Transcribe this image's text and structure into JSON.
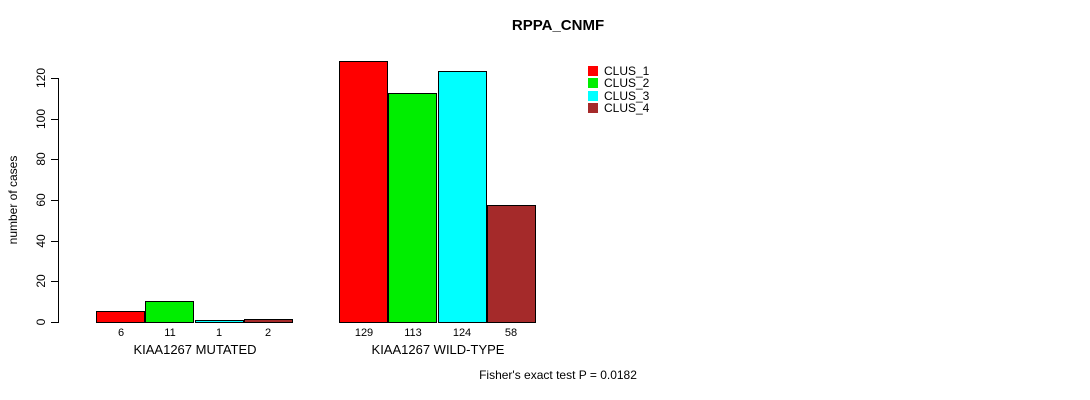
{
  "title": "RPPA_CNMF",
  "footer": "Fisher's exact test P = 0.0182",
  "chart_data": {
    "type": "bar",
    "title": "RPPA_CNMF",
    "xlabel": "",
    "ylabel": "number of cases",
    "ylim": [
      0,
      120
    ],
    "yticks": [
      0,
      20,
      40,
      60,
      80,
      100,
      120
    ],
    "grid": false,
    "legend_position": "top-right",
    "categories": [
      "KIAA1267 MUTATED",
      "KIAA1267 WILD-TYPE"
    ],
    "series": [
      {
        "name": "CLUS_1",
        "color": "#ff0000",
        "values": [
          6,
          129
        ]
      },
      {
        "name": "CLUS_2",
        "color": "#00ee00",
        "values": [
          11,
          113
        ]
      },
      {
        "name": "CLUS_3",
        "color": "#00ffff",
        "values": [
          1,
          124
        ]
      },
      {
        "name": "CLUS_4",
        "color": "#a52a2a",
        "values": [
          2,
          58
        ]
      }
    ],
    "annotation": "Fisher's exact test P = 0.0182"
  },
  "colors": {
    "background": "#ffffff",
    "axis": "#000000",
    "text": "#000000"
  }
}
